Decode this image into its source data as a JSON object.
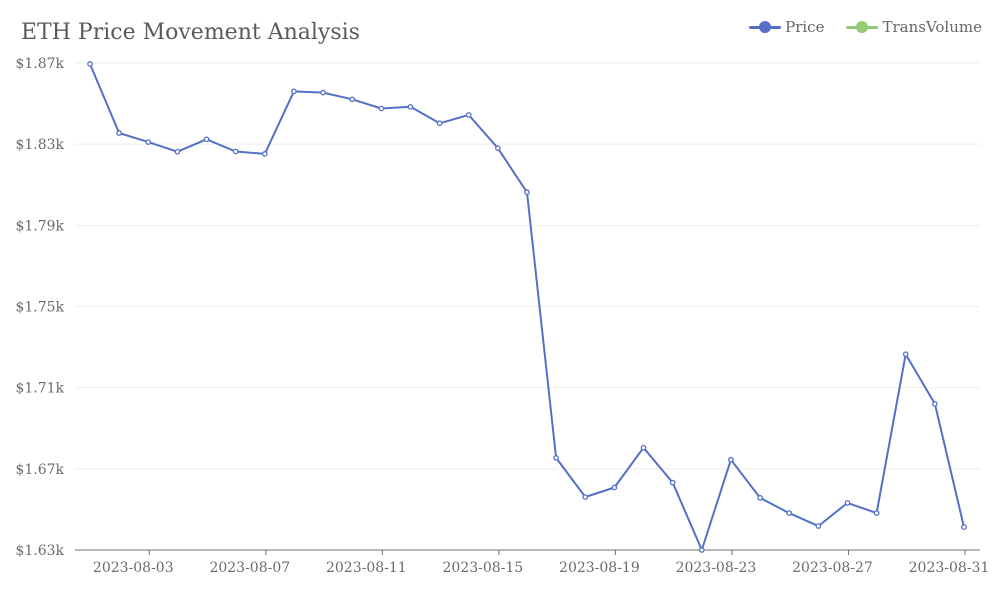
{
  "chart_data": {
    "type": "line",
    "title": "ETH Price Movement Analysis",
    "xlabel": "",
    "ylabel": "",
    "x_tick_labels": [
      "2023-08-03",
      "2023-08-07",
      "2023-08-11",
      "2023-08-15",
      "2023-08-19",
      "2023-08-23",
      "2023-08-27",
      "2023-08-31"
    ],
    "y_tick_labels": [
      "$1.87k",
      "$1.83k",
      "$1.79k",
      "$1.75k",
      "$1.71k",
      "$1.67k",
      "$1.63k"
    ],
    "ylim": [
      1630,
      1870
    ],
    "xlim": [
      "2023-08-01",
      "2023-08-31"
    ],
    "grid": true,
    "legend": [
      "Price",
      "TransVolume"
    ],
    "legend_position": "top-right",
    "series": [
      {
        "name": "Price",
        "color": "#5470c6",
        "x": [
          "2023-08-01",
          "2023-08-02",
          "2023-08-03",
          "2023-08-04",
          "2023-08-05",
          "2023-08-06",
          "2023-08-07",
          "2023-08-08",
          "2023-08-09",
          "2023-08-10",
          "2023-08-11",
          "2023-08-12",
          "2023-08-13",
          "2023-08-14",
          "2023-08-15",
          "2023-08-16",
          "2023-08-17",
          "2023-08-18",
          "2023-08-19",
          "2023-08-20",
          "2023-08-21",
          "2023-08-22",
          "2023-08-23",
          "2023-08-24",
          "2023-08-25",
          "2023-08-26",
          "2023-08-27",
          "2023-08-28",
          "2023-08-29",
          "2023-08-30",
          "2023-08-31"
        ],
        "values": [
          1869.5,
          1835.5,
          1831.0,
          1826.3,
          1832.4,
          1826.4,
          1825.2,
          1856.0,
          1855.4,
          1852.1,
          1847.6,
          1848.4,
          1840.3,
          1844.4,
          1828.0,
          1806.3,
          1675.4,
          1656.1,
          1660.8,
          1680.4,
          1663.2,
          1630.0,
          1674.5,
          1655.7,
          1648.2,
          1641.8,
          1653.2,
          1648.2,
          1726.5,
          1702.0,
          1641.3
        ]
      },
      {
        "name": "TransVolume",
        "color": "#91cc75",
        "x": [],
        "values": []
      }
    ]
  }
}
